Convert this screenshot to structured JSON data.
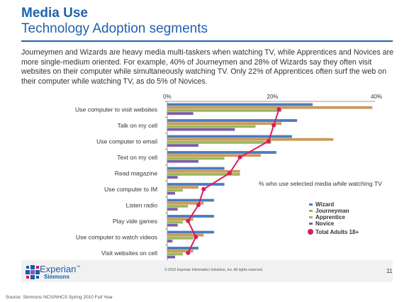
{
  "slide": {
    "title_bold": "Media Use",
    "title_sub": "Technology Adoption segments",
    "body": "Journeymen and Wizards are heavy media multi-taskers when watching TV, while Apprentices and Novices are more single-medium oriented. For example, 40% of Journeymen and 28% of Wizards say they often visit websites on their computer while simultaneously watching TV. Only 22% of Apprentices often surf the web on their computer while watching TV, as do 5% of Novices.",
    "logo_text": "Experian",
    "logo_tm": "™",
    "logo_sub": "Simmons",
    "copyright": "© 2010 Experian Information Solutions, Inc.  All rights reserved.",
    "page_number": "11",
    "source": "Source:  Simmons NCS/NHCS Spring 2010 Full Year"
  },
  "colors": {
    "title": "#1f62ad",
    "Wizard": "#4a7cc0",
    "Journeyman": "#c99a5a",
    "Apprentice": "#9bbb59",
    "Novice": "#7b5ea7",
    "Total Adults 18+": "#d81b60"
  },
  "chart_data": {
    "type": "bar",
    "orientation": "horizontal",
    "annotation": "% who use selected media while watching TV",
    "annotation_parts": [
      "% who use selected media ",
      "while",
      " watching TV"
    ],
    "xlim": [
      0,
      40
    ],
    "x_ticks": [
      "0%",
      "20%",
      "40%"
    ],
    "x_tick_values": [
      0,
      20,
      40
    ],
    "grid": false,
    "legend_position": "right",
    "categories": [
      "Use computer to visit websites",
      "Talk on my cell",
      "Use computer to email",
      "Text on my cell",
      "Read magazine",
      "Use computer to IM",
      "Listen radio",
      "Play vide games",
      "Use computer to watch videos",
      "Visit websites on cell"
    ],
    "series": [
      {
        "name": "Wizard",
        "values": [
          28,
          25,
          24,
          21,
          11,
          11,
          9,
          9,
          9,
          6
        ]
      },
      {
        "name": "Journeyman",
        "values": [
          39.5,
          22,
          32,
          18,
          14,
          6,
          7,
          5,
          7,
          5
        ]
      },
      {
        "name": "Apprentice",
        "values": [
          22,
          17,
          20,
          11,
          14,
          3,
          4,
          3,
          5,
          3
        ]
      },
      {
        "name": "Novice",
        "values": [
          5,
          13,
          6,
          6,
          2,
          1.5,
          2,
          2,
          1,
          1.5
        ]
      }
    ],
    "line_series": {
      "name": "Total Adults 18+",
      "type": "line",
      "values": [
        21.5,
        20.5,
        19.5,
        14,
        12,
        7,
        6,
        4,
        5.5,
        4
      ]
    }
  }
}
